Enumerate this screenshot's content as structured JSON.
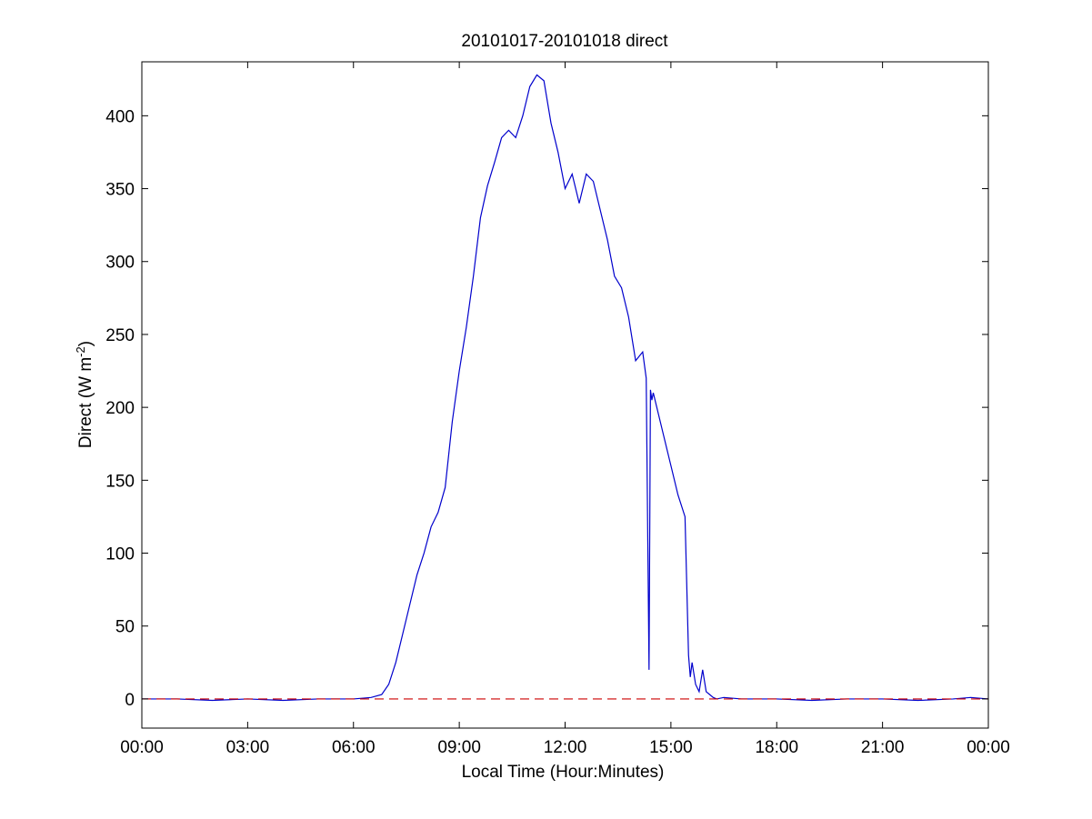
{
  "chart_data": {
    "type": "line",
    "title": "20101017-20101018 direct",
    "xlabel": "Local Time (Hour:Minutes)",
    "ylabel": {
      "prefix": "Direct (W m",
      "superscript": "-2",
      "suffix": ")"
    },
    "xlim": [
      0,
      24
    ],
    "ylim": [
      -20,
      437
    ],
    "x_ticks": [
      0,
      3,
      6,
      9,
      12,
      15,
      18,
      21,
      24
    ],
    "x_tick_labels": [
      "00:00",
      "03:00",
      "06:00",
      "09:00",
      "12:00",
      "15:00",
      "18:00",
      "21:00",
      "00:00"
    ],
    "y_ticks": [
      0,
      50,
      100,
      150,
      200,
      250,
      300,
      350,
      400
    ],
    "y_tick_labels": [
      "0",
      "50",
      "100",
      "150",
      "200",
      "250",
      "300",
      "350",
      "400"
    ],
    "grid": false,
    "series": [
      {
        "color": "#0000cc",
        "style": "solid",
        "x": [
          0,
          1,
          2,
          3,
          4,
          5,
          6,
          6.5,
          6.8,
          7.0,
          7.2,
          7.4,
          7.6,
          7.8,
          8.0,
          8.2,
          8.4,
          8.6,
          8.8,
          9.0,
          9.2,
          9.4,
          9.6,
          9.8,
          10.0,
          10.2,
          10.4,
          10.6,
          10.8,
          11.0,
          11.2,
          11.4,
          11.6,
          11.8,
          12.0,
          12.2,
          12.4,
          12.6,
          12.8,
          13.0,
          13.2,
          13.4,
          13.6,
          13.8,
          14.0,
          14.2,
          14.3,
          14.38,
          14.42,
          14.46,
          14.5,
          14.6,
          14.8,
          15.0,
          15.2,
          15.4,
          15.5,
          15.55,
          15.6,
          15.7,
          15.8,
          15.9,
          16.0,
          16.1,
          16.2,
          16.3,
          16.5,
          17,
          18,
          19,
          20,
          21,
          22,
          23,
          23.5,
          24
        ],
        "y": [
          0,
          0,
          -1,
          0,
          -1,
          0,
          0,
          1,
          3,
          10,
          25,
          45,
          65,
          85,
          100,
          118,
          128,
          145,
          190,
          225,
          255,
          290,
          330,
          352,
          368,
          385,
          390,
          385,
          400,
          420,
          428,
          424,
          395,
          375,
          350,
          360,
          340,
          360,
          355,
          335,
          315,
          290,
          282,
          262,
          232,
          238,
          220,
          20,
          212,
          205,
          210,
          200,
          180,
          160,
          140,
          125,
          30,
          15,
          25,
          10,
          5,
          20,
          5,
          3,
          1,
          0,
          1,
          0,
          0,
          -1,
          0,
          0,
          -1,
          0,
          1,
          0
        ]
      },
      {
        "color": "#cc0000",
        "style": "dashed",
        "x": [
          0,
          24
        ],
        "y": [
          0,
          0
        ]
      }
    ]
  }
}
